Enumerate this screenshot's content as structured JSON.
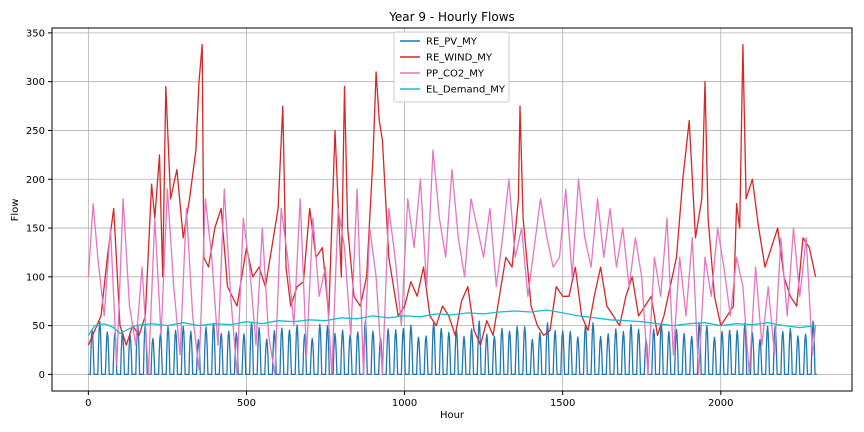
{
  "chart_data": {
    "type": "line",
    "title": "Year 9 - Hourly Flows",
    "xlabel": "Hour",
    "ylabel": "Flow",
    "xlim": [
      -115,
      2415
    ],
    "ylim": [
      -17,
      355
    ],
    "xticks": [
      0,
      500,
      1000,
      1500,
      2000
    ],
    "yticks": [
      0,
      50,
      100,
      150,
      200,
      250,
      300,
      350
    ],
    "grid": true,
    "legend_position": "top-center",
    "series": [
      {
        "name": "RE_PV_MY",
        "color": "#1f77b4",
        "pattern": "daily-solar",
        "period_hours": 24,
        "peak_range": [
          35,
          55
        ],
        "min": 0,
        "x_range": [
          0,
          2300
        ]
      },
      {
        "name": "RE_WIND_MY",
        "color": "#d62728",
        "x": [
          0,
          20,
          40,
          60,
          80,
          100,
          120,
          140,
          160,
          180,
          200,
          210,
          225,
          235,
          245,
          260,
          280,
          300,
          320,
          340,
          350,
          360,
          365,
          380,
          400,
          420,
          440,
          470,
          500,
          520,
          540,
          560,
          580,
          600,
          615,
          625,
          640,
          660,
          680,
          700,
          720,
          740,
          760,
          780,
          800,
          810,
          820,
          840,
          860,
          880,
          900,
          910,
          920,
          930,
          950,
          980,
          1000,
          1020,
          1040,
          1060,
          1080,
          1100,
          1120,
          1140,
          1160,
          1180,
          1200,
          1220,
          1240,
          1260,
          1280,
          1300,
          1320,
          1340,
          1360,
          1365,
          1375,
          1400,
          1420,
          1440,
          1460,
          1480,
          1500,
          1520,
          1540,
          1560,
          1580,
          1600,
          1620,
          1640,
          1660,
          1680,
          1700,
          1720,
          1740,
          1760,
          1780,
          1800,
          1820,
          1840,
          1860,
          1880,
          1900,
          1920,
          1940,
          1950,
          1960,
          1980,
          2000,
          2020,
          2040,
          2050,
          2060,
          2070,
          2080,
          2100,
          2120,
          2140,
          2160,
          2180,
          2200,
          2220,
          2240,
          2260,
          2280,
          2300
        ],
        "values": [
          30,
          45,
          60,
          120,
          170,
          50,
          30,
          50,
          40,
          60,
          195,
          160,
          225,
          100,
          295,
          180,
          210,
          140,
          180,
          230,
          300,
          338,
          120,
          110,
          150,
          170,
          90,
          70,
          130,
          100,
          110,
          90,
          130,
          170,
          275,
          110,
          70,
          90,
          95,
          170,
          120,
          130,
          60,
          250,
          100,
          295,
          150,
          80,
          70,
          100,
          220,
          310,
          260,
          240,
          120,
          60,
          70,
          95,
          80,
          110,
          60,
          50,
          70,
          60,
          40,
          75,
          90,
          45,
          30,
          55,
          40,
          80,
          120,
          110,
          180,
          275,
          160,
          70,
          50,
          40,
          45,
          90,
          80,
          80,
          110,
          60,
          45,
          80,
          110,
          70,
          60,
          50,
          80,
          100,
          60,
          70,
          80,
          40,
          60,
          90,
          120,
          200,
          260,
          140,
          180,
          300,
          160,
          80,
          50,
          60,
          70,
          175,
          150,
          338,
          180,
          200,
          150,
          110,
          130,
          150,
          100,
          80,
          70,
          140,
          130,
          100
        ]
      },
      {
        "name": "PP_CO2_MY",
        "color": "#e377c2",
        "x": [
          0,
          15,
          30,
          50,
          70,
          90,
          110,
          130,
          150,
          170,
          190,
          210,
          230,
          250,
          270,
          290,
          310,
          330,
          350,
          370,
          390,
          410,
          430,
          450,
          470,
          490,
          510,
          530,
          550,
          570,
          590,
          610,
          630,
          650,
          670,
          690,
          710,
          730,
          750,
          770,
          790,
          810,
          830,
          850,
          870,
          890,
          910,
          930,
          950,
          970,
          990,
          1010,
          1030,
          1050,
          1070,
          1090,
          1110,
          1130,
          1150,
          1170,
          1190,
          1210,
          1230,
          1250,
          1270,
          1290,
          1310,
          1330,
          1350,
          1370,
          1390,
          1410,
          1430,
          1450,
          1470,
          1490,
          1510,
          1530,
          1550,
          1570,
          1590,
          1610,
          1630,
          1650,
          1670,
          1690,
          1710,
          1730,
          1750,
          1770,
          1790,
          1810,
          1830,
          1850,
          1870,
          1890,
          1910,
          1930,
          1950,
          1970,
          1990,
          2010,
          2030,
          2050,
          2070,
          2090,
          2110,
          2130,
          2150,
          2170,
          2190,
          2210,
          2230,
          2250,
          2270,
          2290,
          2300
        ],
        "values": [
          100,
          175,
          120,
          60,
          150,
          10,
          180,
          70,
          30,
          110,
          0,
          160,
          40,
          190,
          90,
          20,
          170,
          60,
          5,
          180,
          120,
          30,
          190,
          80,
          0,
          160,
          110,
          30,
          150,
          40,
          0,
          170,
          120,
          50,
          180,
          20,
          160,
          80,
          110,
          0,
          170,
          130,
          40,
          190,
          0,
          150,
          100,
          0,
          170,
          120,
          50,
          180,
          130,
          200,
          90,
          230,
          160,
          120,
          210,
          140,
          100,
          180,
          150,
          120,
          170,
          90,
          140,
          200,
          120,
          150,
          80,
          130,
          180,
          140,
          110,
          120,
          190,
          100,
          200,
          140,
          110,
          180,
          120,
          170,
          110,
          150,
          90,
          140,
          100,
          0,
          120,
          80,
          160,
          20,
          120,
          60,
          140,
          0,
          120,
          80,
          150,
          110,
          60,
          120,
          90,
          0,
          110,
          30,
          90,
          20,
          140,
          60,
          150,
          80,
          140,
          20,
          50
        ]
      },
      {
        "name": "EL_Demand_MY",
        "color": "#17becf",
        "x": [
          0,
          20,
          50,
          80,
          100,
          150,
          200,
          250,
          300,
          350,
          400,
          450,
          500,
          550,
          600,
          650,
          700,
          750,
          800,
          850,
          900,
          950,
          1000,
          1050,
          1100,
          1150,
          1200,
          1250,
          1300,
          1350,
          1400,
          1450,
          1500,
          1550,
          1600,
          1650,
          1700,
          1750,
          1800,
          1850,
          1900,
          1950,
          2000,
          2050,
          2100,
          2150,
          2200,
          2250,
          2300
        ],
        "values": [
          40,
          50,
          52,
          48,
          42,
          50,
          52,
          50,
          53,
          50,
          52,
          51,
          54,
          52,
          55,
          54,
          56,
          55,
          58,
          57,
          60,
          58,
          60,
          59,
          62,
          61,
          63,
          62,
          64,
          65,
          64,
          66,
          63,
          60,
          58,
          56,
          55,
          54,
          52,
          50,
          52,
          53,
          50,
          52,
          51,
          53,
          50,
          48,
          50
        ]
      }
    ]
  }
}
